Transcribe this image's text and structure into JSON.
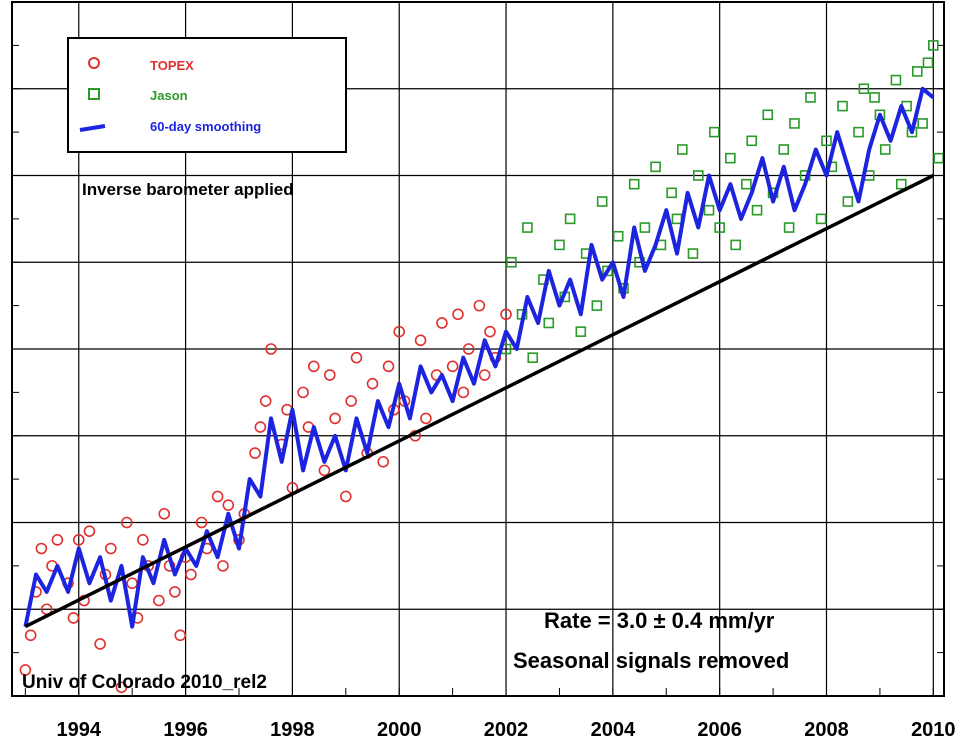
{
  "chart_data": {
    "type": "scatter",
    "title": "",
    "xlabel": "",
    "ylabel": "",
    "xlim": [
      1992.75,
      2010.2
    ],
    "ylim": [
      -30,
      50
    ],
    "x_tick_labels": [
      "1994",
      "1996",
      "1998",
      "2000",
      "2002",
      "2004",
      "2006",
      "2008",
      "2010"
    ],
    "x_ticks": [
      1994,
      1996,
      1998,
      2000,
      2002,
      2004,
      2006,
      2008,
      2010
    ],
    "y_gridlines": [
      -20,
      -10,
      0,
      10,
      20,
      30,
      40
    ],
    "grid": true,
    "legend": {
      "placement": "top-left",
      "entries": [
        {
          "label": "TOPEX",
          "marker": "circle",
          "color": "#e03030"
        },
        {
          "label": "Jason",
          "marker": "square",
          "color": "#2a9a2a"
        },
        {
          "label": "60-day smoothing",
          "marker": "line",
          "color": "#1c24e0"
        }
      ]
    },
    "annotations": {
      "inverse": "Inverse barometer applied",
      "rate": "Rate = 3.0 ± 0.4 mm/yr",
      "seasonal": "Seasonal signals removed",
      "source": "Univ of Colorado 2010_rel2"
    },
    "trend": {
      "name": "",
      "color": "#000000",
      "x": [
        1993.0,
        2010.0
      ],
      "y": [
        -22,
        30
      ]
    },
    "series": [
      {
        "name": "TOPEX",
        "kind": "scatter",
        "color": "#e03030",
        "x": [
          1993.0,
          1993.1,
          1993.2,
          1993.3,
          1993.4,
          1993.5,
          1993.6,
          1993.8,
          1993.9,
          1994.0,
          1994.1,
          1994.2,
          1994.4,
          1994.5,
          1994.6,
          1994.8,
          1994.9,
          1995.0,
          1995.1,
          1995.2,
          1995.3,
          1995.5,
          1995.6,
          1995.7,
          1995.8,
          1995.9,
          1996.0,
          1996.1,
          1996.3,
          1996.4,
          1996.6,
          1996.7,
          1996.8,
          1997.0,
          1997.1,
          1997.3,
          1997.4,
          1997.5,
          1997.6,
          1997.8,
          1997.9,
          1998.0,
          1998.2,
          1998.3,
          1998.4,
          1998.6,
          1998.7,
          1998.8,
          1999.0,
          1999.1,
          1999.2,
          1999.4,
          1999.5,
          1999.7,
          1999.8,
          1999.9,
          2000.0,
          2000.1,
          2000.3,
          2000.4,
          2000.5,
          2000.7,
          2000.8,
          2001.0,
          2001.1,
          2001.2,
          2001.3,
          2001.5,
          2001.6,
          2001.7,
          2001.8,
          2002.0
        ],
        "y": [
          -27,
          -23,
          -18,
          -13,
          -20,
          -15,
          -12,
          -17,
          -21,
          -12,
          -19,
          -11,
          -24,
          -16,
          -13,
          -29,
          -10,
          -17,
          -21,
          -12,
          -15,
          -19,
          -9,
          -15,
          -18,
          -23,
          -14,
          -16,
          -10,
          -13,
          -7,
          -15,
          -8,
          -12,
          -9,
          -2,
          1,
          4,
          10,
          -1,
          3,
          -6,
          5,
          1,
          8,
          -4,
          7,
          2,
          -7,
          4,
          9,
          -2,
          6,
          -3,
          8,
          3,
          12,
          4,
          0,
          11,
          2,
          7,
          13,
          8,
          14,
          5,
          10,
          15,
          7,
          12,
          9,
          14
        ]
      },
      {
        "name": "Jason",
        "kind": "scatter",
        "color": "#2a9a2a",
        "x": [
          2002.0,
          2002.1,
          2002.3,
          2002.4,
          2002.5,
          2002.7,
          2002.8,
          2003.0,
          2003.1,
          2003.2,
          2003.4,
          2003.5,
          2003.7,
          2003.8,
          2003.9,
          2004.1,
          2004.2,
          2004.4,
          2004.5,
          2004.6,
          2004.8,
          2004.9,
          2005.1,
          2005.2,
          2005.3,
          2005.5,
          2005.6,
          2005.8,
          2005.9,
          2006.0,
          2006.2,
          2006.3,
          2006.5,
          2006.6,
          2006.7,
          2006.9,
          2007.0,
          2007.2,
          2007.3,
          2007.4,
          2007.6,
          2007.7,
          2007.9,
          2008.0,
          2008.1,
          2008.3,
          2008.4,
          2008.6,
          2008.7,
          2008.8,
          2009.0,
          2009.1,
          2009.3,
          2009.4,
          2009.5,
          2009.7,
          2009.8,
          2010.0,
          2010.1,
          2009.9,
          2009.6,
          2008.9
        ],
        "y": [
          10,
          20,
          14,
          24,
          9,
          18,
          13,
          22,
          16,
          25,
          12,
          21,
          15,
          27,
          19,
          23,
          17,
          29,
          20,
          24,
          31,
          22,
          28,
          25,
          33,
          21,
          30,
          26,
          35,
          24,
          32,
          22,
          29,
          34,
          26,
          37,
          28,
          33,
          24,
          36,
          30,
          39,
          25,
          34,
          31,
          38,
          27,
          35,
          40,
          30,
          37,
          33,
          41,
          29,
          38,
          42,
          36,
          45,
          32,
          43,
          35,
          39
        ]
      },
      {
        "name": "60-day smoothing",
        "kind": "line",
        "color": "#1c24e0",
        "x": [
          1993.0,
          1993.2,
          1993.4,
          1993.6,
          1993.8,
          1994.0,
          1994.2,
          1994.4,
          1994.6,
          1994.8,
          1995.0,
          1995.2,
          1995.4,
          1995.6,
          1995.8,
          1996.0,
          1996.2,
          1996.4,
          1996.6,
          1996.8,
          1997.0,
          1997.2,
          1997.4,
          1997.6,
          1997.8,
          1998.0,
          1998.2,
          1998.4,
          1998.6,
          1998.8,
          1999.0,
          1999.2,
          1999.4,
          1999.6,
          1999.8,
          2000.0,
          2000.2,
          2000.4,
          2000.6,
          2000.8,
          2001.0,
          2001.2,
          2001.4,
          2001.6,
          2001.8,
          2002.0,
          2002.2,
          2002.4,
          2002.6,
          2002.8,
          2003.0,
          2003.2,
          2003.4,
          2003.6,
          2003.8,
          2004.0,
          2004.2,
          2004.4,
          2004.6,
          2004.8,
          2005.0,
          2005.2,
          2005.4,
          2005.6,
          2005.8,
          2006.0,
          2006.2,
          2006.4,
          2006.6,
          2006.8,
          2007.0,
          2007.2,
          2007.4,
          2007.6,
          2007.8,
          2008.0,
          2008.2,
          2008.4,
          2008.6,
          2008.8,
          2009.0,
          2009.2,
          2009.4,
          2009.6,
          2009.8,
          2010.0
        ],
        "y": [
          -22,
          -16,
          -18,
          -15,
          -18,
          -13,
          -17,
          -14,
          -19,
          -15,
          -22,
          -14,
          -17,
          -12,
          -16,
          -13,
          -15,
          -11,
          -14,
          -9,
          -13,
          -5,
          -7,
          2,
          -3,
          3,
          -4,
          1,
          -3,
          0,
          -4,
          2,
          -2,
          4,
          1,
          6,
          2,
          8,
          5,
          7,
          4,
          9,
          6,
          11,
          8,
          12,
          10,
          16,
          13,
          19,
          15,
          18,
          14,
          22,
          18,
          20,
          16,
          24,
          19,
          22,
          26,
          21,
          28,
          24,
          30,
          26,
          29,
          25,
          28,
          32,
          27,
          31,
          26,
          29,
          33,
          30,
          35,
          31,
          27,
          33,
          37,
          34,
          38,
          35,
          40,
          39
        ]
      }
    ]
  }
}
